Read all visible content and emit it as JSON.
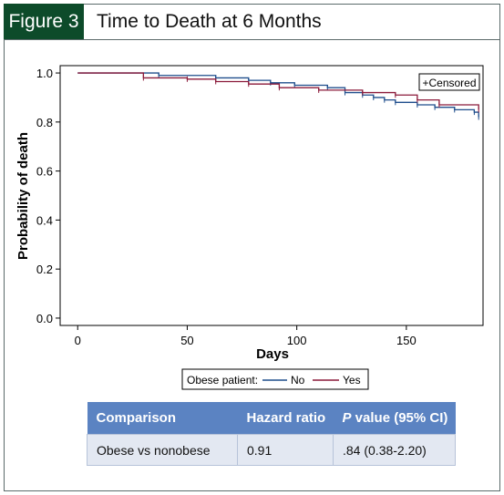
{
  "figure": {
    "tag": "Figure 3",
    "title": "Time to Death at 6 Months"
  },
  "chart_data": {
    "type": "line",
    "xlabel": "Days",
    "ylabel": "Probability of death",
    "xlim": [
      -8,
      185
    ],
    "ylim": [
      -0.03,
      1.03
    ],
    "xticks": [
      0,
      50,
      100,
      150
    ],
    "yticks": [
      0.0,
      0.2,
      0.4,
      0.6,
      0.8,
      1.0
    ],
    "ytick_labels": [
      "0.0",
      "0.2",
      "0.4",
      "0.6",
      "0.8",
      "1.0"
    ],
    "censored_label": "+Censored",
    "legend": {
      "title": "Obese patient:",
      "placement": "bottom"
    },
    "series": [
      {
        "name": "No",
        "color": "#1f4e8c",
        "x": [
          0,
          37,
          63,
          78,
          88,
          99,
          114,
          122,
          130,
          135,
          140,
          145,
          155,
          163,
          172,
          181,
          183
        ],
        "y": [
          1.0,
          0.99,
          0.98,
          0.97,
          0.96,
          0.95,
          0.94,
          0.92,
          0.91,
          0.9,
          0.89,
          0.88,
          0.87,
          0.86,
          0.85,
          0.84,
          0.82
        ]
      },
      {
        "name": "Yes",
        "color": "#8b1a3a",
        "x": [
          0,
          30,
          50,
          63,
          78,
          92,
          110,
          130,
          145,
          155,
          165,
          183
        ],
        "y": [
          1.0,
          0.98,
          0.975,
          0.965,
          0.955,
          0.94,
          0.93,
          0.92,
          0.91,
          0.89,
          0.87,
          0.85
        ]
      }
    ]
  },
  "table": {
    "headers": [
      "Comparison",
      "Hazard ratio",
      "P",
      " value (95% CI)"
    ],
    "rows": [
      [
        "Obese vs nonobese",
        "0.91",
        ".84 (0.38-2.20)"
      ]
    ]
  }
}
